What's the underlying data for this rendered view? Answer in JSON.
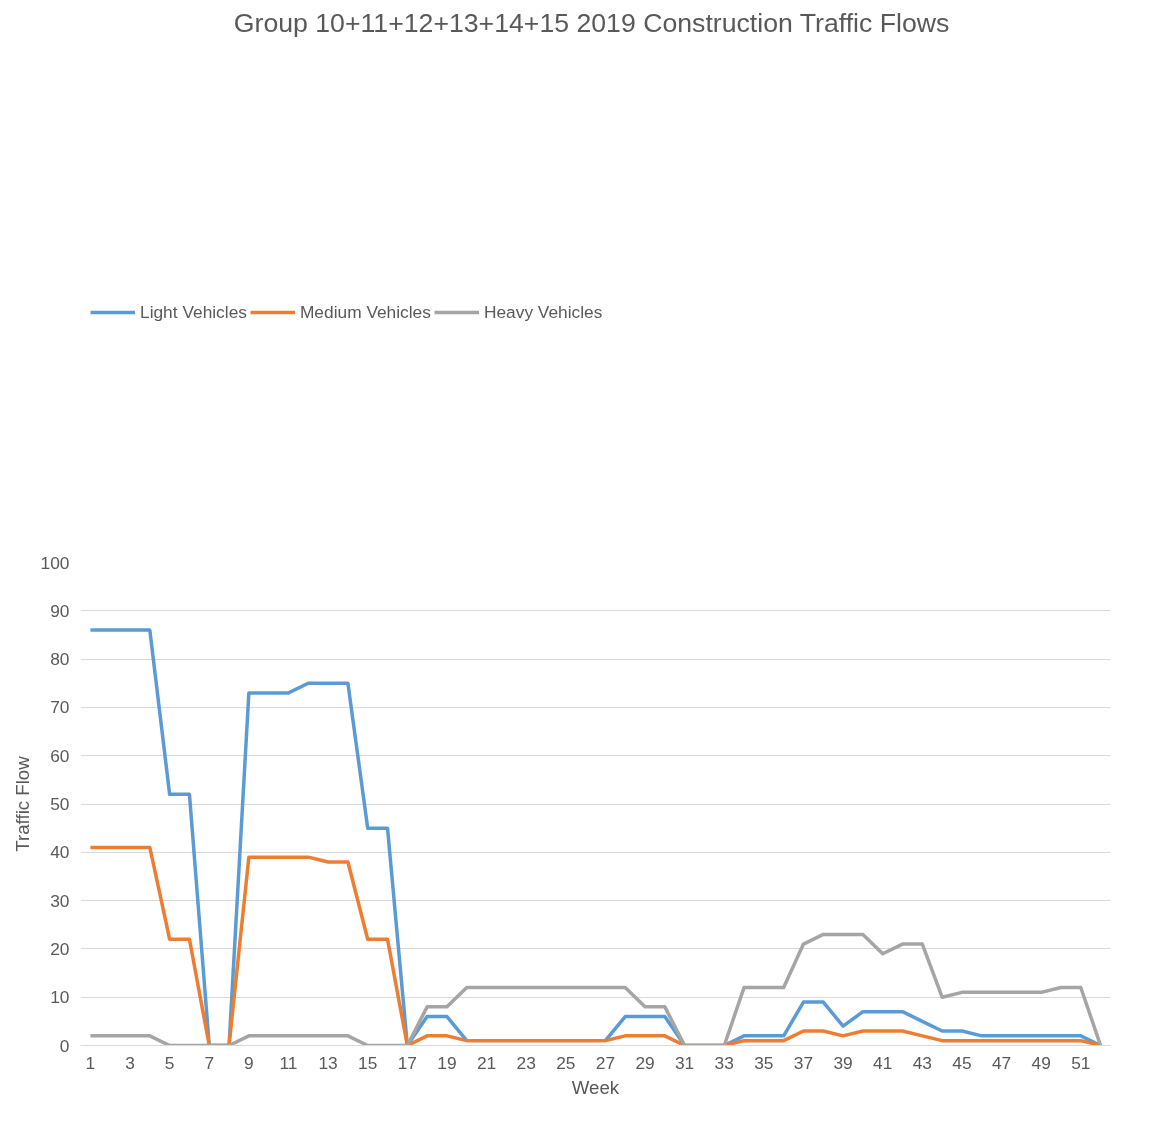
{
  "chart_data": {
    "type": "line",
    "title": "Group 10+11+12+13+14+15 2019 Construction  Traffic Flows",
    "xlabel": "Week",
    "ylabel": "Traffic Flow",
    "x": [
      1,
      2,
      3,
      4,
      5,
      6,
      7,
      8,
      9,
      10,
      11,
      12,
      13,
      14,
      15,
      16,
      17,
      18,
      19,
      20,
      21,
      22,
      23,
      24,
      25,
      26,
      27,
      28,
      29,
      30,
      31,
      32,
      33,
      34,
      35,
      36,
      37,
      38,
      39,
      40,
      41,
      42,
      43,
      44,
      45,
      46,
      47,
      48,
      49,
      50,
      51,
      52
    ],
    "series": [
      {
        "name": "Light Vehicles",
        "color": "#5b9bd5",
        "values": [
          86,
          86,
          86,
          86,
          52,
          52,
          0,
          0,
          73,
          73,
          73,
          75,
          75,
          75,
          45,
          45,
          0,
          6,
          6,
          1,
          null,
          null,
          null,
          null,
          null,
          null,
          1,
          6,
          6,
          6,
          0,
          0,
          0,
          2,
          2,
          2,
          9,
          9,
          4,
          7,
          7,
          7,
          5,
          3,
          3,
          2,
          2,
          2,
          2,
          2,
          2,
          0
        ]
      },
      {
        "name": "Medium Vehicles",
        "color": "#ed7d31",
        "values": [
          41,
          41,
          41,
          41,
          22,
          22,
          0,
          0,
          39,
          39,
          39,
          39,
          38,
          38,
          22,
          22,
          0,
          2,
          2,
          1,
          1,
          1,
          1,
          1,
          1,
          1,
          1,
          2,
          2,
          2,
          0,
          0,
          0,
          1,
          1,
          1,
          3,
          3,
          2,
          3,
          3,
          3,
          2,
          1,
          1,
          1,
          1,
          1,
          1,
          1,
          1,
          0
        ]
      },
      {
        "name": "Heavy Vehicles",
        "color": "#a5a5a5",
        "values": [
          2,
          2,
          2,
          2,
          0,
          0,
          0,
          0,
          2,
          2,
          2,
          2,
          2,
          2,
          0,
          0,
          0,
          8,
          8,
          12,
          12,
          12,
          12,
          12,
          12,
          12,
          12,
          12,
          8,
          8,
          0,
          0,
          0,
          12,
          12,
          12,
          21,
          23,
          23,
          23,
          19,
          21,
          21,
          10,
          11,
          11,
          11,
          11,
          11,
          12,
          12,
          0
        ]
      }
    ],
    "xlim": [
      0.5,
      52.5
    ],
    "xticks": [
      1,
      3,
      5,
      7,
      9,
      11,
      13,
      15,
      17,
      19,
      21,
      23,
      25,
      27,
      29,
      31,
      33,
      35,
      37,
      39,
      41,
      43,
      45,
      47,
      49,
      51
    ],
    "ylim": [
      0,
      100
    ],
    "yticks": [
      0,
      10,
      20,
      30,
      40,
      50,
      60,
      70,
      80,
      90,
      100
    ],
    "grid": "y",
    "legend": "top left",
    "marker": "none",
    "line_style": "solid"
  }
}
